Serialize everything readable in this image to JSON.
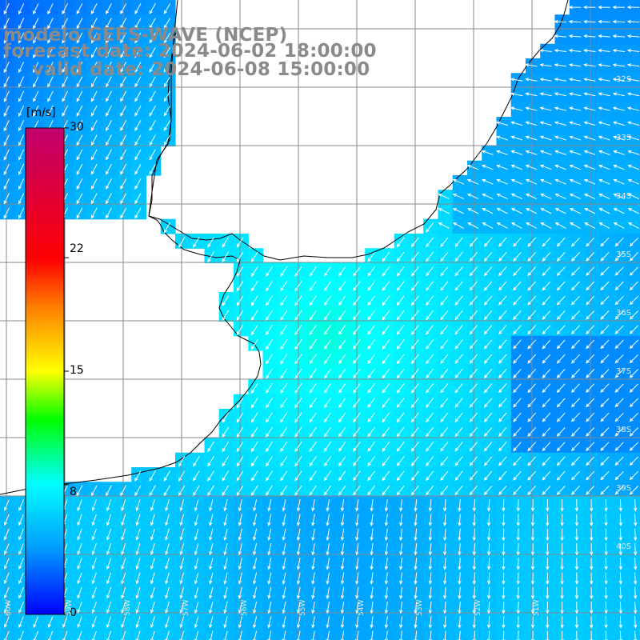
{
  "title": {
    "model": "modelo GEFS-WAVE (NCEP)",
    "forecast": "forecast date: 2024-06-02 18:00:00",
    "valid": "valid date: 2024-06-08 15:00:00"
  },
  "colorbar": {
    "unit": "[m/s]",
    "ticks": [
      "30",
      "22",
      "15",
      "8",
      "0"
    ],
    "tick_values": [
      30,
      22,
      15,
      8,
      0
    ],
    "min": 0,
    "max": 30,
    "colors": [
      "#0000ff",
      "#00a0ff",
      "#00ffff",
      "#00ff00",
      "#ffff00",
      "#ff8000",
      "#ff0000",
      "#c0006f"
    ]
  },
  "map": {
    "land_color": "#ffffff",
    "coast_color": "#000000",
    "grid_color": "#888888",
    "arrow_color": "#ffffff",
    "lat_labels": [
      "32S",
      "33S",
      "34S",
      "35S",
      "36S",
      "37S",
      "38S",
      "39S",
      "40S"
    ],
    "lon_labels": [
      "60W",
      "59W",
      "58W",
      "57W",
      "56W",
      "55W",
      "54W",
      "53W",
      "52W",
      "51W"
    ],
    "field": "wind speed and direction over ocean (blue to cyan, approx. 3–9 m/s)"
  }
}
